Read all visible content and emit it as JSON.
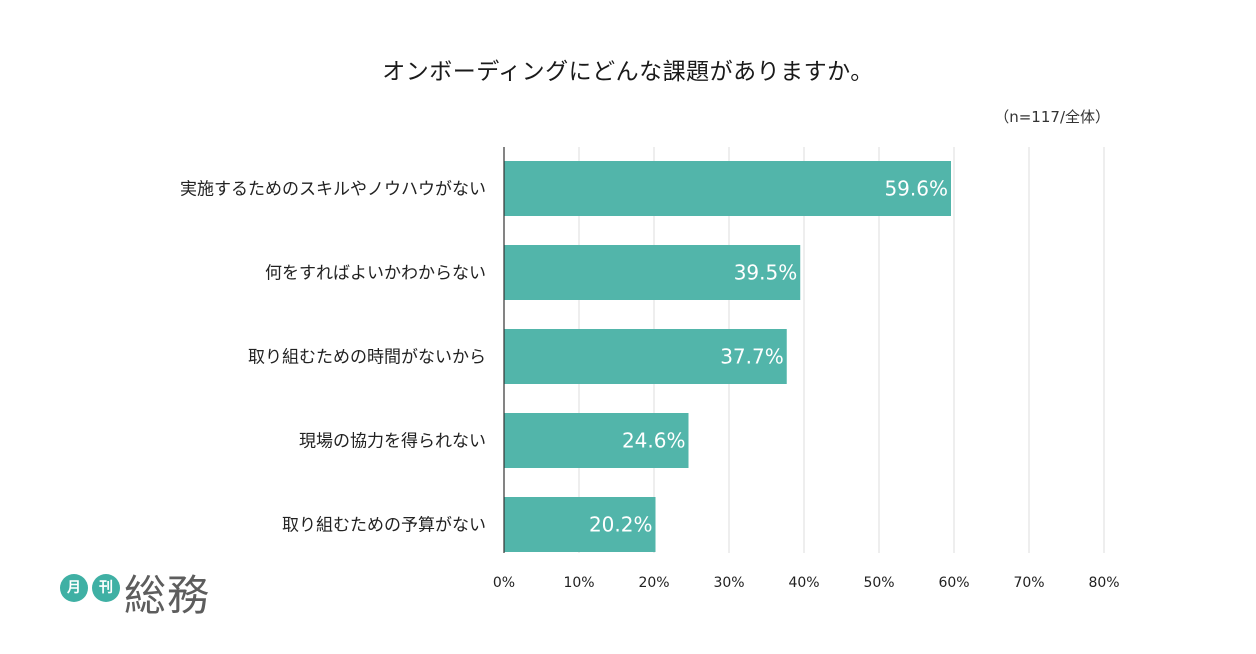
{
  "header": {
    "title": "オンボーディングにどんな課題がありますか。",
    "sample_note": "（n=117/全体）"
  },
  "logo": {
    "badge_1": "月",
    "badge_2": "刊",
    "name": "総務",
    "accent_color": "#3fb0a4"
  },
  "chart_data": {
    "type": "bar",
    "orientation": "horizontal",
    "title": "オンボーディングにどんな課題がありますか。",
    "categories": [
      "実施するためのスキルやノウハウがない",
      "何をすればよいかわからない",
      "取り組むための時間がないから",
      "現場の協力を得られない",
      "取り組むための予算がない"
    ],
    "values": [
      59.6,
      39.5,
      37.7,
      24.6,
      20.2
    ],
    "data_labels": [
      "59.6%",
      "39.5%",
      "37.7%",
      "24.6%",
      "20.2%"
    ],
    "xlim": [
      0,
      80
    ],
    "x_ticks": [
      0,
      10,
      20,
      30,
      40,
      50,
      60,
      70,
      80
    ],
    "x_tick_labels": [
      "0%",
      "10%",
      "20%",
      "30%",
      "40%",
      "50%",
      "60%",
      "70%",
      "80%"
    ],
    "xlabel": "",
    "ylabel": "",
    "grid": true,
    "legend": "none",
    "bar_color": "#52b5aa",
    "label_color": "#ffffff"
  }
}
